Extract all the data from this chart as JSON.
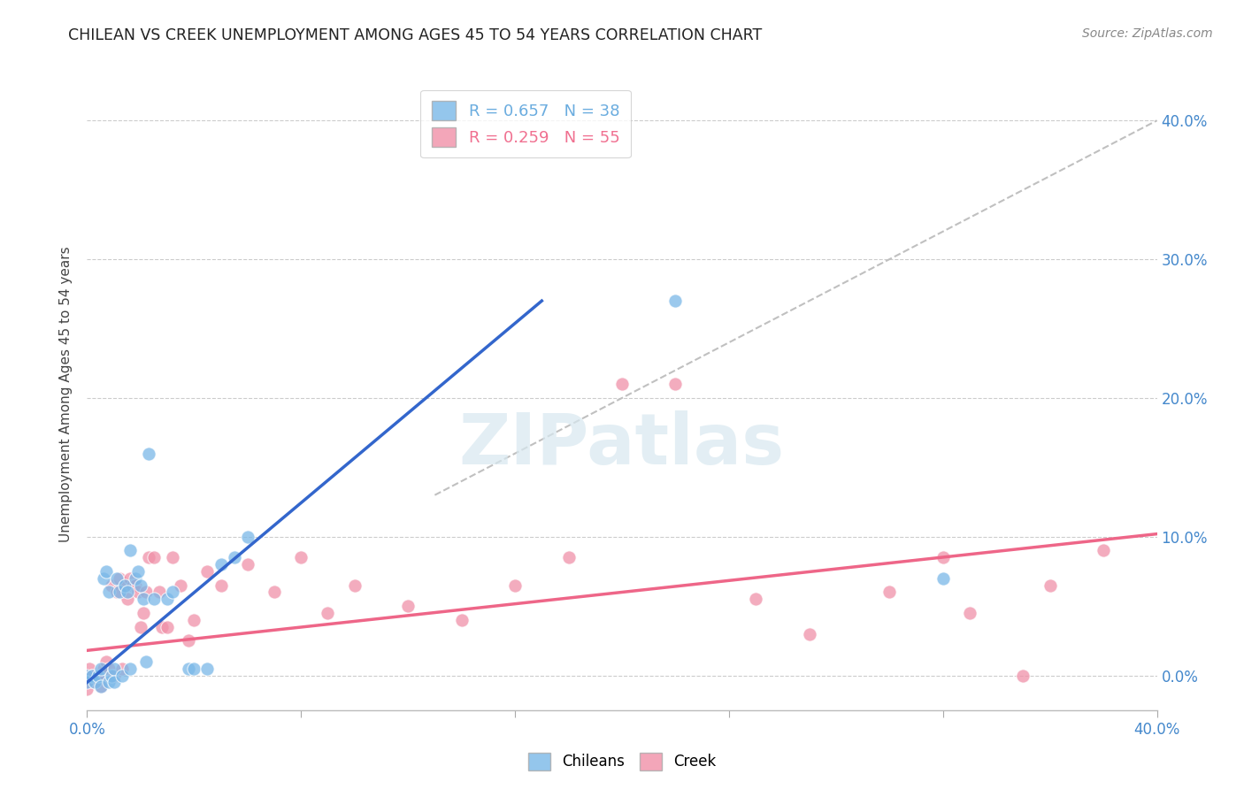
{
  "title": "CHILEAN VS CREEK UNEMPLOYMENT AMONG AGES 45 TO 54 YEARS CORRELATION CHART",
  "source": "Source: ZipAtlas.com",
  "ylabel": "Unemployment Among Ages 45 to 54 years",
  "xlim": [
    0.0,
    0.4
  ],
  "ylim": [
    -0.025,
    0.43
  ],
  "yticks": [
    0.0,
    0.1,
    0.2,
    0.3,
    0.4
  ],
  "xticks": [
    0.0,
    0.08,
    0.16,
    0.24,
    0.32,
    0.4
  ],
  "background_color": "#ffffff",
  "watermark": "ZIPatlas",
  "legend_entries": [
    {
      "label": "R = 0.657   N = 38",
      "color": "#6aacdf"
    },
    {
      "label": "R = 0.259   N = 55",
      "color": "#f07090"
    }
  ],
  "chilean_color": "#7ab8e8",
  "creek_color": "#f090a8",
  "chilean_line_color": "#3366cc",
  "creek_line_color": "#ee6688",
  "diagonal_color": "#c0c0c0",
  "title_color": "#222222",
  "axis_label_color": "#444444",
  "tick_label_color": "#4488cc",
  "chilean_scatter": {
    "x": [
      0.0,
      0.0,
      0.002,
      0.003,
      0.004,
      0.005,
      0.005,
      0.006,
      0.007,
      0.008,
      0.008,
      0.009,
      0.01,
      0.01,
      0.011,
      0.012,
      0.013,
      0.014,
      0.015,
      0.016,
      0.016,
      0.018,
      0.019,
      0.02,
      0.021,
      0.022,
      0.023,
      0.025,
      0.03,
      0.032,
      0.038,
      0.04,
      0.045,
      0.05,
      0.055,
      0.06,
      0.22,
      0.32
    ],
    "y": [
      0.0,
      -0.005,
      0.0,
      -0.005,
      0.0,
      0.005,
      -0.008,
      0.07,
      0.075,
      0.06,
      -0.005,
      0.0,
      0.005,
      -0.005,
      0.07,
      0.06,
      0.0,
      0.065,
      0.06,
      0.09,
      0.005,
      0.07,
      0.075,
      0.065,
      0.055,
      0.01,
      0.16,
      0.055,
      0.055,
      0.06,
      0.005,
      0.005,
      0.005,
      0.08,
      0.085,
      0.1,
      0.27,
      0.07
    ]
  },
  "creek_scatter": {
    "x": [
      0.0,
      0.0,
      0.001,
      0.002,
      0.003,
      0.004,
      0.005,
      0.005,
      0.006,
      0.007,
      0.008,
      0.009,
      0.01,
      0.011,
      0.012,
      0.013,
      0.014,
      0.015,
      0.016,
      0.017,
      0.018,
      0.019,
      0.02,
      0.021,
      0.022,
      0.023,
      0.025,
      0.027,
      0.028,
      0.03,
      0.032,
      0.035,
      0.038,
      0.04,
      0.045,
      0.05,
      0.06,
      0.07,
      0.08,
      0.09,
      0.1,
      0.12,
      0.14,
      0.16,
      0.18,
      0.2,
      0.22,
      0.25,
      0.27,
      0.3,
      0.32,
      0.33,
      0.35,
      0.36,
      0.38
    ],
    "y": [
      0.0,
      -0.01,
      0.005,
      0.0,
      -0.005,
      -0.003,
      0.0,
      -0.008,
      0.005,
      0.01,
      0.005,
      0.065,
      0.0,
      0.06,
      0.07,
      0.005,
      0.065,
      0.055,
      0.07,
      0.065,
      0.065,
      0.06,
      0.035,
      0.045,
      0.06,
      0.085,
      0.085,
      0.06,
      0.035,
      0.035,
      0.085,
      0.065,
      0.025,
      0.04,
      0.075,
      0.065,
      0.08,
      0.06,
      0.085,
      0.045,
      0.065,
      0.05,
      0.04,
      0.065,
      0.085,
      0.21,
      0.21,
      0.055,
      0.03,
      0.06,
      0.085,
      0.045,
      0.0,
      0.065,
      0.09
    ]
  },
  "chilean_line": {
    "x0": 0.0,
    "y0": -0.005,
    "x1": 0.17,
    "y1": 0.27
  },
  "creek_line": {
    "x0": 0.0,
    "y0": 0.018,
    "x1": 0.4,
    "y1": 0.102
  },
  "diagonal_line": {
    "x0": 0.13,
    "y0": 0.13,
    "x1": 0.4,
    "y1": 0.4
  }
}
